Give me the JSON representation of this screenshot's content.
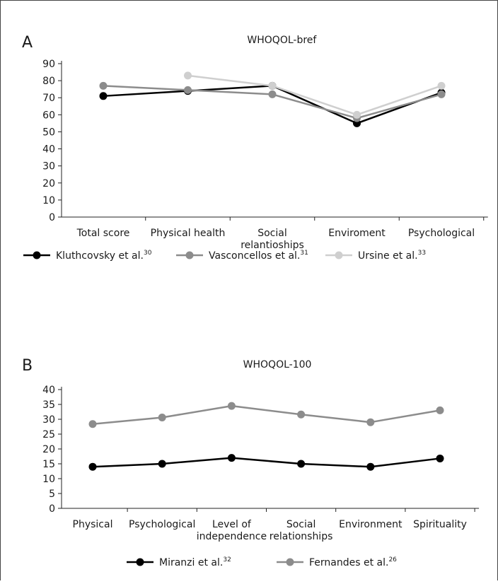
{
  "chart_data": [
    {
      "panel_label": "A",
      "type": "line",
      "title": "WHOQOL-bref",
      "categories": [
        "Total score",
        "Physical health",
        "Social relantioships",
        "Enviroment",
        "Psychological"
      ],
      "category_lines": [
        [
          "Total score"
        ],
        [
          "Physical health"
        ],
        [
          "Social",
          "relantioships"
        ],
        [
          "Enviroment"
        ],
        [
          "Psychological"
        ]
      ],
      "ylim": [
        0,
        90
      ],
      "yticks": [
        0,
        10,
        20,
        30,
        40,
        50,
        60,
        70,
        80,
        90
      ],
      "legend_position": "bottom",
      "grid": false,
      "series": [
        {
          "name": "Kluthcovsky et al.",
          "ref": "30",
          "color": "#000000",
          "values": [
            71,
            74,
            77,
            55,
            73
          ]
        },
        {
          "name": "Vasconcellos et al.",
          "ref": "31",
          "color": "#8c8c8c",
          "values": [
            77,
            74.5,
            72,
            58,
            72
          ]
        },
        {
          "name": "Ursine et al.",
          "ref": "33",
          "color": "#cfcfcf",
          "values": [
            null,
            83,
            77,
            60,
            77
          ]
        }
      ]
    },
    {
      "panel_label": "B",
      "type": "line",
      "title": "WHOQOL-100",
      "categories": [
        "Physical",
        "Psychological",
        "Level of independence",
        "Social relationships",
        "Environment",
        "Spirituality"
      ],
      "category_lines": [
        [
          "Physical"
        ],
        [
          "Psychological"
        ],
        [
          "Level of",
          "independence"
        ],
        [
          "Social",
          "relationships"
        ],
        [
          "Environment"
        ],
        [
          "Spirituality"
        ]
      ],
      "ylim": [
        0,
        40
      ],
      "yticks": [
        0,
        5,
        10,
        15,
        20,
        25,
        30,
        35,
        40
      ],
      "legend_position": "bottom",
      "grid": false,
      "series": [
        {
          "name": "Miranzi et al.",
          "ref": "32",
          "color": "#000000",
          "values": [
            14,
            15,
            17,
            15,
            14,
            16.8
          ]
        },
        {
          "name": "Fernandes et al.",
          "ref": "26",
          "color": "#8c8c8c",
          "values": [
            28.4,
            30.6,
            34.5,
            31.6,
            29,
            33
          ]
        }
      ]
    }
  ]
}
